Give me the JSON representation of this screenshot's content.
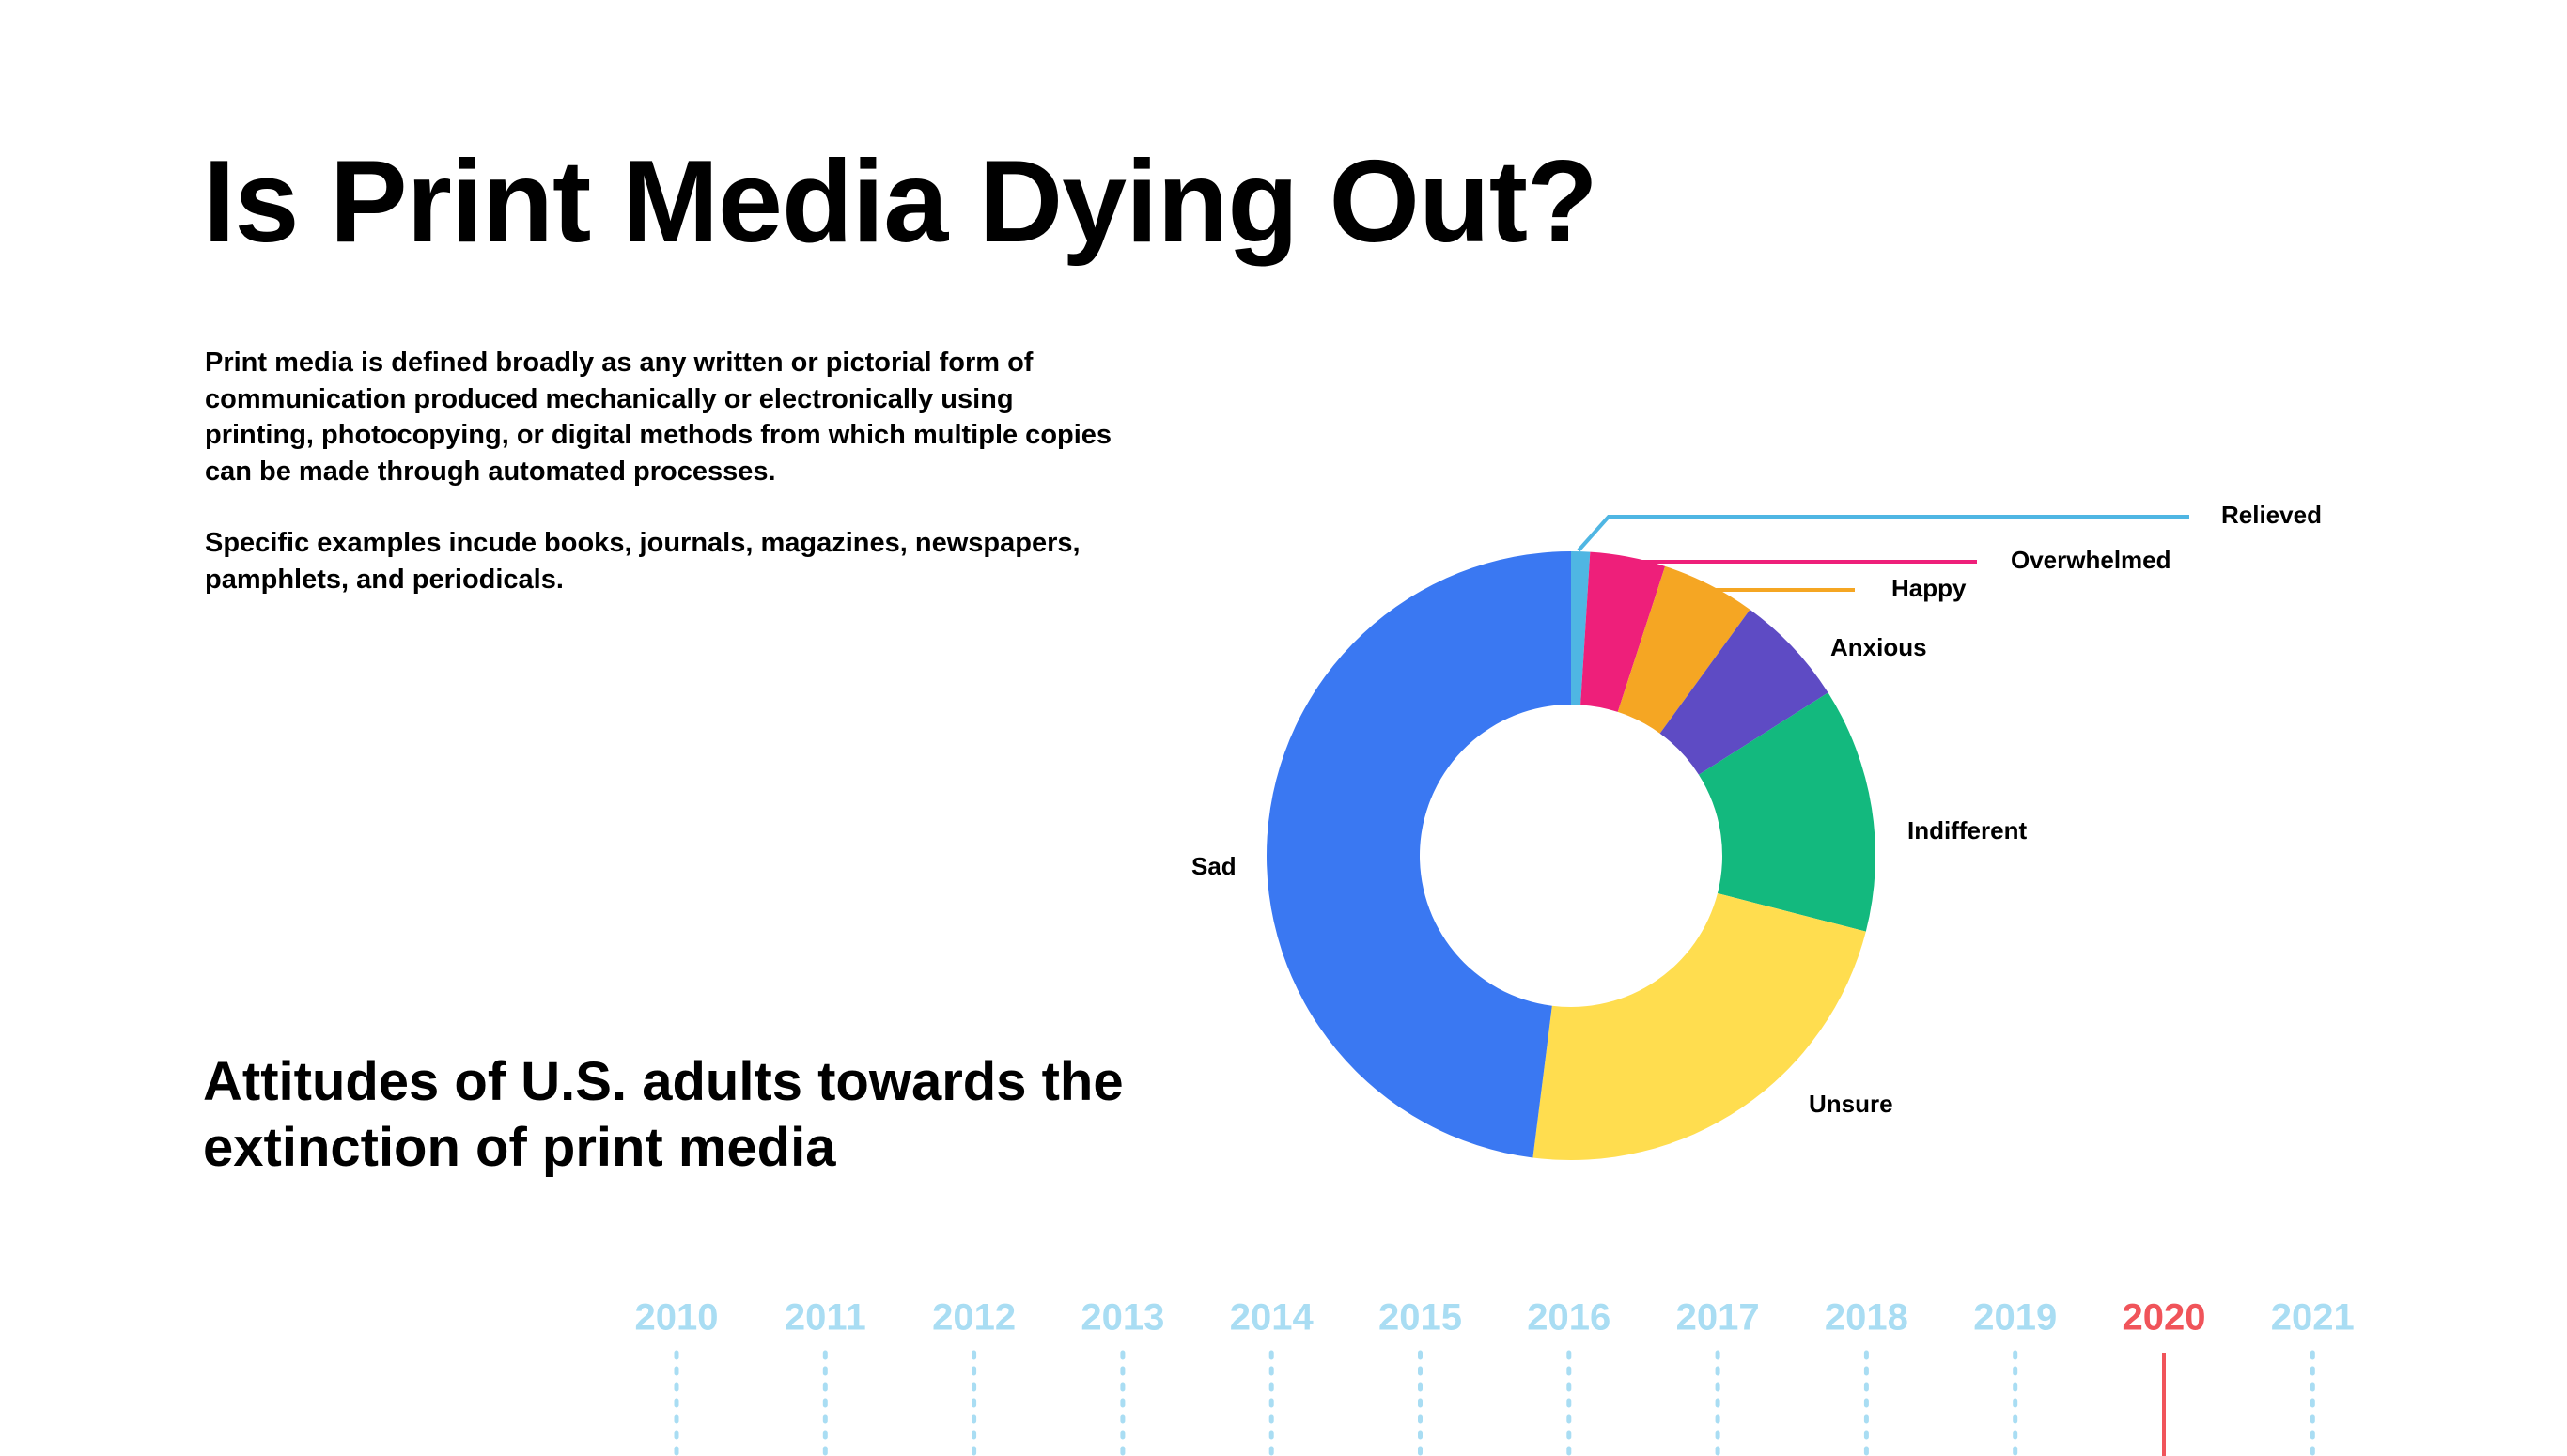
{
  "page": {
    "title": "Is Print Media Dying Out?",
    "intro_paragraphs": [
      "Print media is defined broadly as any written or pictorial form of communication produced mechanically or electronically using printing, photocopying, or digital methods from which multiple copies can be made through automated processes.",
      "Specific examples incude books, journals, magazines, newspapers, pamphlets, and periodicals."
    ]
  },
  "chart_data": {
    "type": "pie",
    "style": "donut",
    "title": "Attitudes of U.S. adults towards the extinction of print media",
    "slices": [
      {
        "label": "Relieved",
        "value": 1,
        "color": "#4FB6E3"
      },
      {
        "label": "Overwhelmed",
        "value": 4,
        "color": "#EE1F7A"
      },
      {
        "label": "Happy",
        "value": 5,
        "color": "#F5A623"
      },
      {
        "label": "Anxious",
        "value": 6,
        "color": "#5E4BC4"
      },
      {
        "label": "Indifferent",
        "value": 13,
        "color": "#13B97E"
      },
      {
        "label": "Unsure",
        "value": 23,
        "color": "#FFDD4F"
      },
      {
        "label": "Sad",
        "value": 48,
        "color": "#3A78F2"
      }
    ]
  },
  "timeline": {
    "years": [
      "2010",
      "2011",
      "2012",
      "2013",
      "2014",
      "2015",
      "2016",
      "2017",
      "2018",
      "2019",
      "2020",
      "2021"
    ],
    "selected": "2020",
    "colors": {
      "default": "#A9DDF3",
      "selected": "#F0545A"
    }
  }
}
